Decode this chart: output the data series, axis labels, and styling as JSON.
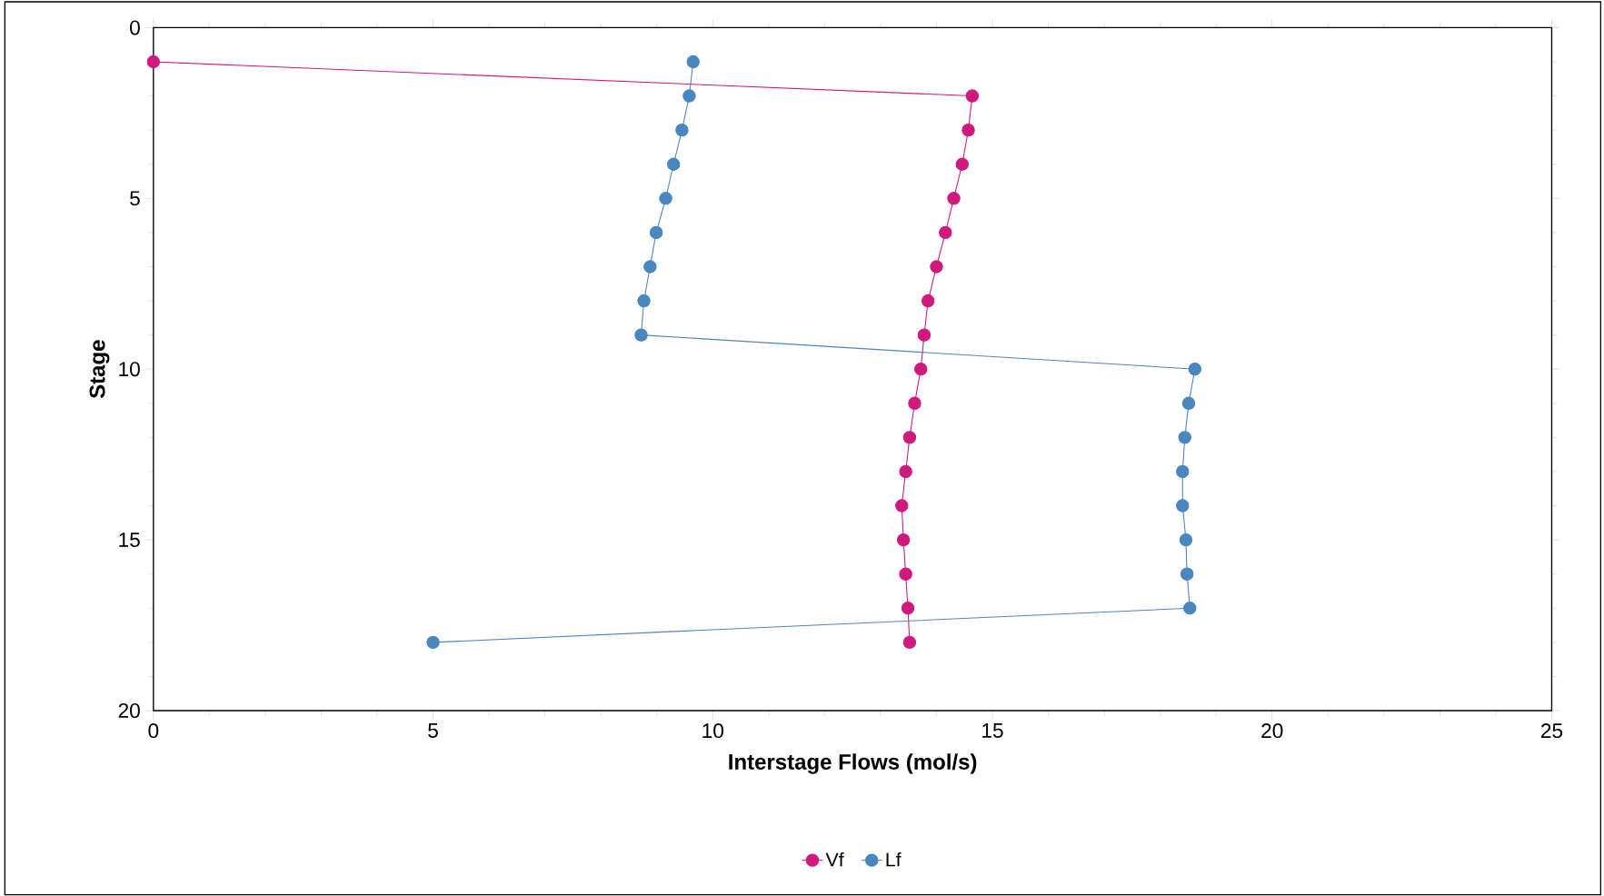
{
  "chart_data": {
    "type": "line",
    "xlabel": "Interstage Flows (mol/s)",
    "ylabel": "Stage",
    "xlim": [
      0,
      25
    ],
    "ylim": [
      20,
      0
    ],
    "xticks": [
      0,
      5,
      10,
      15,
      20,
      25
    ],
    "yticks": [
      0,
      5,
      10,
      15,
      20
    ],
    "legend": "bottom",
    "marker": "circle",
    "line_style": "solid",
    "grid": false,
    "series": [
      {
        "name": "Vf",
        "color": "#d0197f",
        "x": [
          0,
          14.64,
          14.57,
          14.46,
          14.31,
          14.16,
          14.0,
          13.85,
          13.78,
          13.72,
          13.61,
          13.52,
          13.45,
          13.38,
          13.41,
          13.45,
          13.49,
          13.52
        ],
        "values": [
          1,
          2,
          3,
          4,
          5,
          6,
          7,
          8,
          9,
          10,
          11,
          12,
          13,
          14,
          15,
          16,
          17,
          18
        ]
      },
      {
        "name": "Lf",
        "color": "#4a86c0",
        "x": [
          9.65,
          9.58,
          9.45,
          9.3,
          9.16,
          8.99,
          8.88,
          8.77,
          8.72,
          18.62,
          18.51,
          18.44,
          18.4,
          18.4,
          18.46,
          18.48,
          18.53,
          5.0
        ],
        "values": [
          1,
          2,
          3,
          4,
          5,
          6,
          7,
          8,
          9,
          10,
          11,
          12,
          13,
          14,
          15,
          16,
          17,
          18
        ]
      }
    ]
  }
}
